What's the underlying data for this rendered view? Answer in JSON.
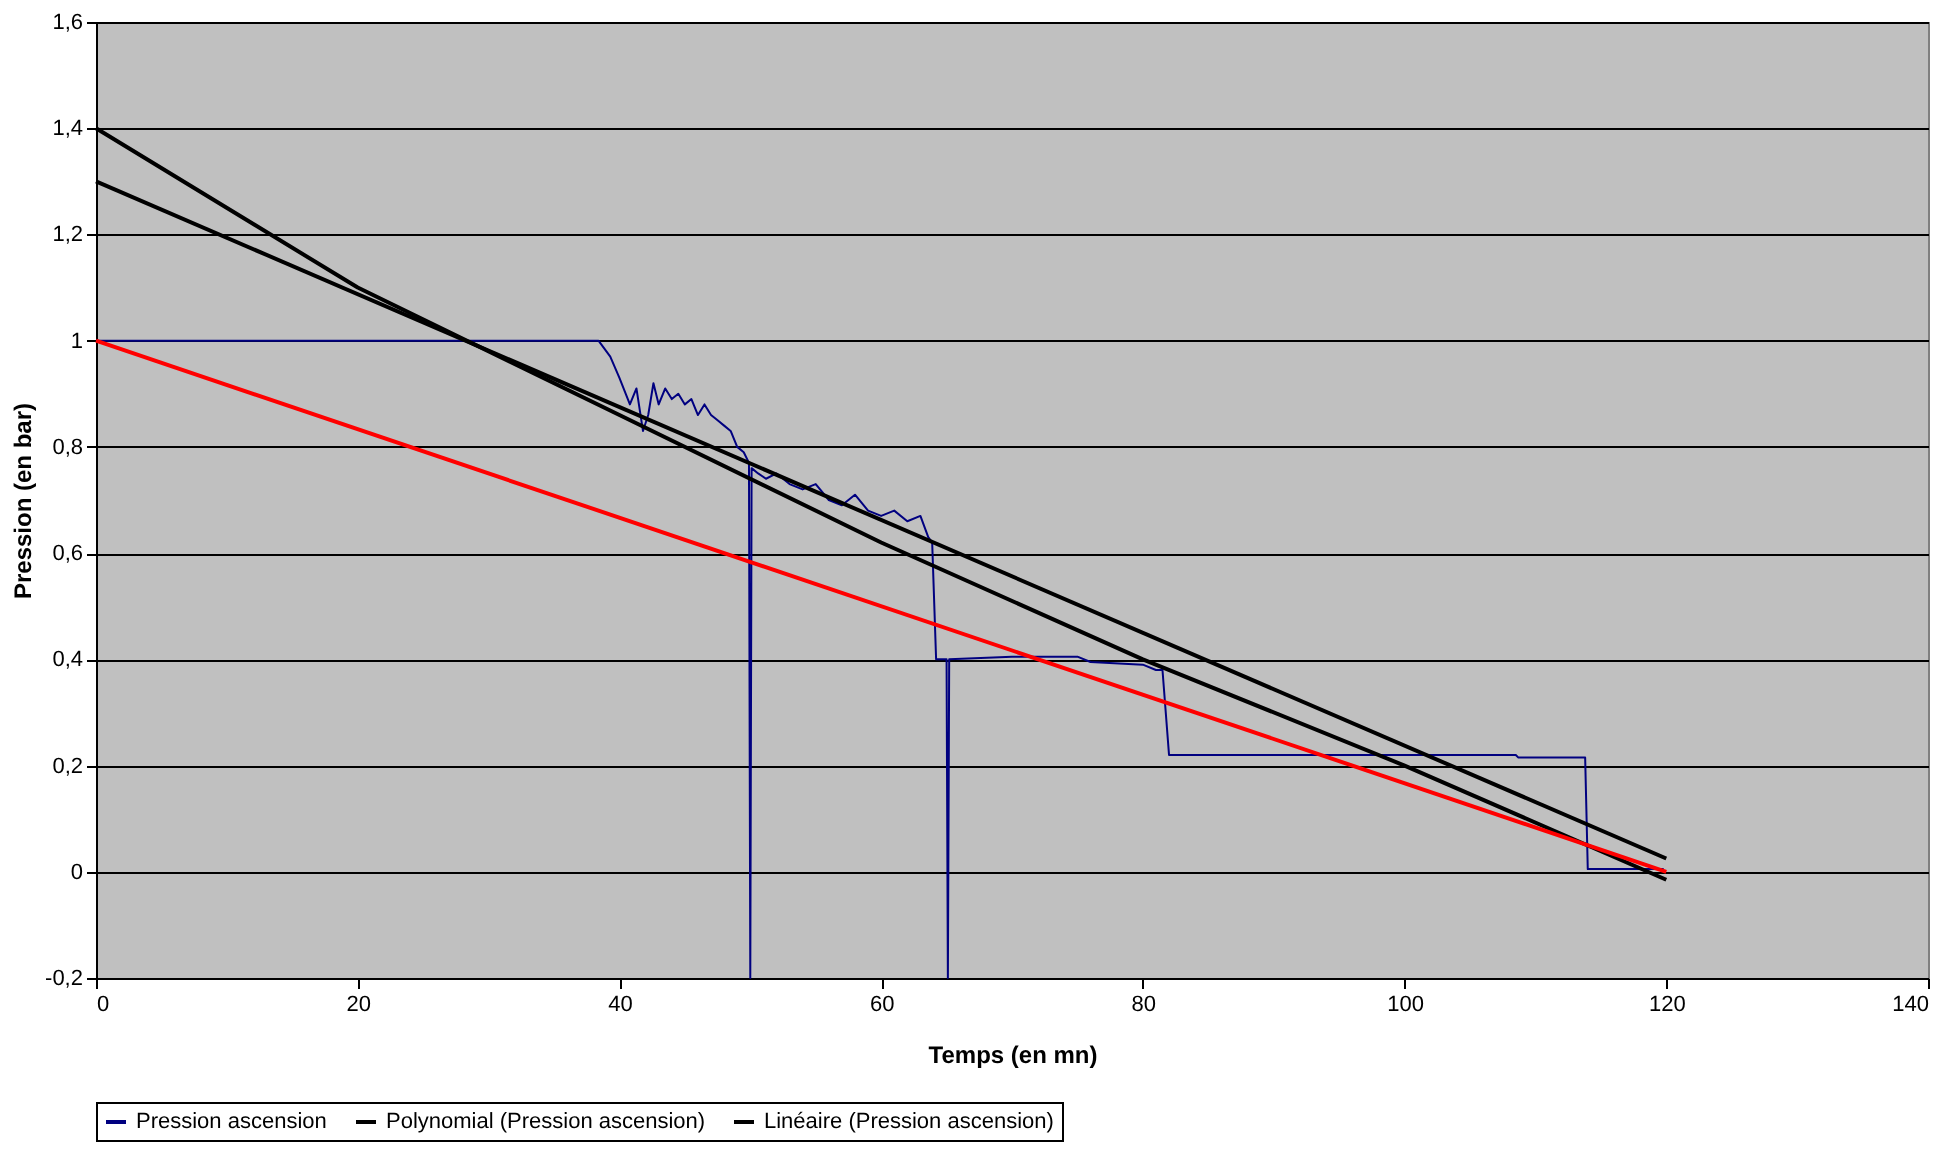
{
  "chart_data": {
    "type": "line",
    "xlabel": "Temps (en mn)",
    "ylabel": "Pression (en bar)",
    "xlim": [
      0,
      140
    ],
    "xticks": [
      0,
      20,
      40,
      60,
      80,
      100,
      120,
      140
    ],
    "ylim": [
      -0.2,
      1.6
    ],
    "yticks": [
      {
        "value": -0.2,
        "label": "-0,2"
      },
      0,
      {
        "value": 0.2,
        "label": "0,2"
      },
      {
        "value": 0.4,
        "label": "0,4"
      },
      {
        "value": 0.6,
        "label": "0,6"
      },
      {
        "value": 0.8,
        "label": "0,8"
      },
      1,
      {
        "value": 1.2,
        "label": "1,2"
      },
      {
        "value": 1.4,
        "label": "1,4"
      },
      {
        "value": 1.6,
        "label": "1,6"
      }
    ],
    "grid": "y",
    "legend": "bottom",
    "marker": "none",
    "line_style": "solid",
    "series": [
      {
        "name": "Pression ascension",
        "color": "#000080",
        "x": [
          0,
          38.4,
          39.3,
          40,
          40.8,
          41.3,
          41.8,
          42.2,
          42.6,
          43,
          43.5,
          44,
          44.5,
          45,
          45.5,
          46,
          46.5,
          47,
          47.5,
          48,
          48.5,
          49,
          49.5,
          49.9,
          50,
          50.1,
          50.6,
          51.2,
          52,
          53,
          54,
          55,
          56,
          57,
          58,
          59,
          60,
          61,
          62,
          63,
          63.6,
          63.9,
          64.2,
          65,
          65.1,
          65.2,
          70,
          75,
          76,
          80,
          81,
          81.5,
          82,
          108.5,
          108.7,
          113.8,
          114,
          119.8
        ],
        "values": [
          1,
          1,
          0.97,
          0.93,
          0.88,
          0.91,
          0.83,
          0.86,
          0.92,
          0.88,
          0.91,
          0.89,
          0.9,
          0.88,
          0.89,
          0.86,
          0.88,
          0.86,
          0.85,
          0.84,
          0.83,
          0.8,
          0.79,
          0.77,
          -0.2,
          0.76,
          0.75,
          0.74,
          0.75,
          0.73,
          0.72,
          0.73,
          0.7,
          0.69,
          0.71,
          0.68,
          0.67,
          0.68,
          0.66,
          0.67,
          0.63,
          0.62,
          0.4,
          0.4,
          -0.2,
          0.4,
          0.405,
          0.405,
          0.395,
          0.39,
          0.38,
          0.38,
          0.22,
          0.22,
          0.215,
          0.215,
          0.005,
          0.005
        ]
      },
      {
        "name": "Polynomial (Pression ascension)",
        "color": "#000000",
        "x": [
          0,
          20,
          40,
          60,
          80,
          100,
          120
        ],
        "values": [
          1.4,
          1.1,
          0.86,
          0.62,
          0.4,
          0.2,
          -0.015
        ]
      },
      {
        "name": "Linéaire (Pression ascension)",
        "color": "#000000",
        "x": [
          0,
          120
        ],
        "values": [
          1.3,
          0.025
        ]
      },
      {
        "color": "#ff0000",
        "x": [
          0,
          120
        ],
        "values": [
          1,
          0
        ]
      }
    ]
  }
}
